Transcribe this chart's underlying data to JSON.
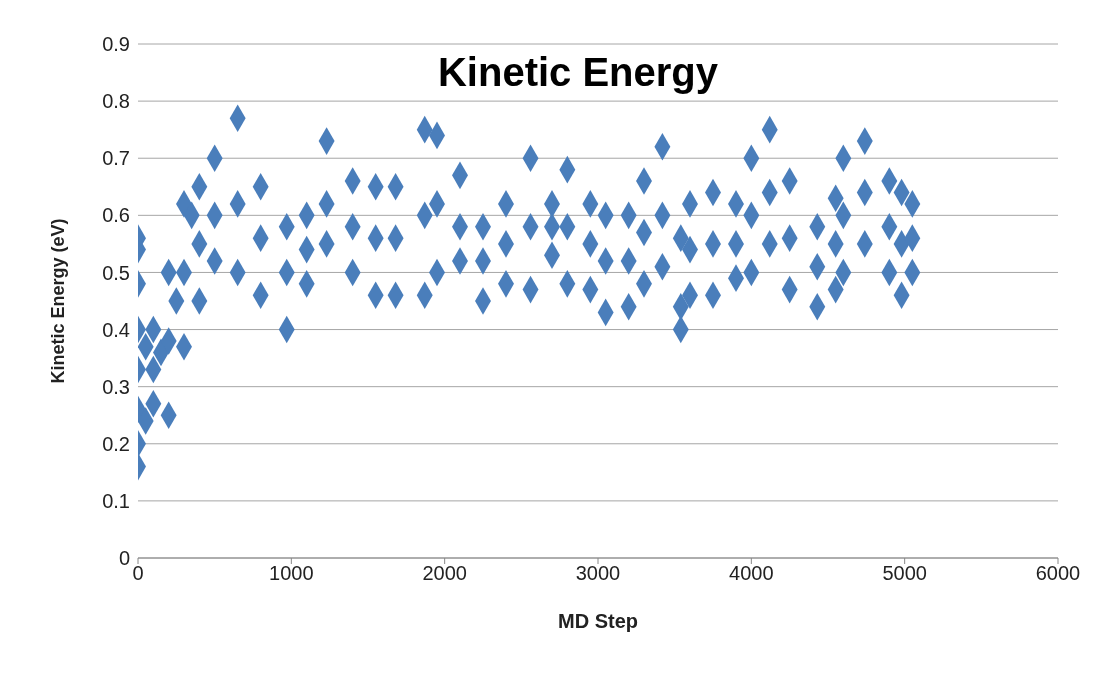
{
  "chart_data": {
    "type": "scatter",
    "title": "Kinetic Energy",
    "xlabel": "MD Step",
    "ylabel": "Kinetic Energy (eV)",
    "x": [
      0,
      0,
      0,
      0,
      0,
      0,
      0,
      0,
      50,
      50,
      100,
      100,
      100,
      150,
      200,
      200,
      200,
      250,
      300,
      300,
      300,
      350,
      400,
      400,
      400,
      500,
      500,
      500,
      650,
      650,
      650,
      800,
      800,
      800,
      970,
      970,
      970,
      1100,
      1100,
      1100,
      1230,
      1230,
      1230,
      1400,
      1400,
      1400,
      1550,
      1550,
      1550,
      1680,
      1680,
      1680,
      1870,
      1870,
      1870,
      1950,
      1950,
      1950,
      2100,
      2100,
      2100,
      2250,
      2250,
      2250,
      2400,
      2400,
      2400,
      2560,
      2560,
      2560,
      2700,
      2700,
      2700,
      2800,
      2800,
      2800,
      2950,
      2950,
      2950,
      3050,
      3050,
      3050,
      3200,
      3200,
      3200,
      3300,
      3300,
      3300,
      3420,
      3420,
      3420,
      3540,
      3540,
      3540,
      3600,
      3600,
      3600,
      3750,
      3750,
      3750,
      3900,
      3900,
      3900,
      4000,
      4000,
      4000,
      4120,
      4120,
      4120,
      4250,
      4250,
      4250,
      4430,
      4430,
      4430,
      4550,
      4550,
      4550,
      4600,
      4600,
      4600,
      4740,
      4740,
      4740,
      4900,
      4900,
      4900,
      4980,
      4980,
      4980,
      5050,
      5050,
      5050
    ],
    "values": [
      0.56,
      0.54,
      0.48,
      0.4,
      0.33,
      0.26,
      0.2,
      0.16,
      0.37,
      0.24,
      0.4,
      0.33,
      0.27,
      0.36,
      0.5,
      0.38,
      0.25,
      0.45,
      0.62,
      0.5,
      0.37,
      0.6,
      0.65,
      0.55,
      0.45,
      0.7,
      0.6,
      0.52,
      0.77,
      0.62,
      0.5,
      0.65,
      0.56,
      0.46,
      0.58,
      0.5,
      0.4,
      0.6,
      0.54,
      0.48,
      0.73,
      0.62,
      0.55,
      0.66,
      0.58,
      0.5,
      0.65,
      0.56,
      0.46,
      0.65,
      0.56,
      0.46,
      0.75,
      0.6,
      0.46,
      0.74,
      0.62,
      0.5,
      0.67,
      0.58,
      0.52,
      0.58,
      0.52,
      0.45,
      0.62,
      0.55,
      0.48,
      0.7,
      0.58,
      0.47,
      0.62,
      0.58,
      0.53,
      0.68,
      0.58,
      0.48,
      0.62,
      0.55,
      0.47,
      0.6,
      0.52,
      0.43,
      0.6,
      0.52,
      0.44,
      0.66,
      0.57,
      0.48,
      0.72,
      0.6,
      0.51,
      0.56,
      0.44,
      0.4,
      0.62,
      0.54,
      0.46,
      0.64,
      0.55,
      0.46,
      0.62,
      0.55,
      0.49,
      0.7,
      0.6,
      0.5,
      0.75,
      0.64,
      0.55,
      0.66,
      0.56,
      0.47,
      0.58,
      0.51,
      0.44,
      0.63,
      0.55,
      0.47,
      0.7,
      0.6,
      0.5,
      0.73,
      0.64,
      0.55,
      0.66,
      0.58,
      0.5,
      0.64,
      0.55,
      0.46,
      0.62,
      0.56,
      0.5
    ],
    "color": "#4a7ebb",
    "marker": "diamond",
    "grid": "y",
    "legend": false,
    "xlim": [
      0,
      6000
    ],
    "xticks": [
      0,
      1000,
      2000,
      3000,
      4000,
      5000,
      6000
    ],
    "ylim": [
      0,
      0.9
    ],
    "yticks": [
      0,
      0.1,
      0.2,
      0.3,
      0.4,
      0.5,
      0.6,
      0.7,
      0.8,
      0.9
    ]
  }
}
